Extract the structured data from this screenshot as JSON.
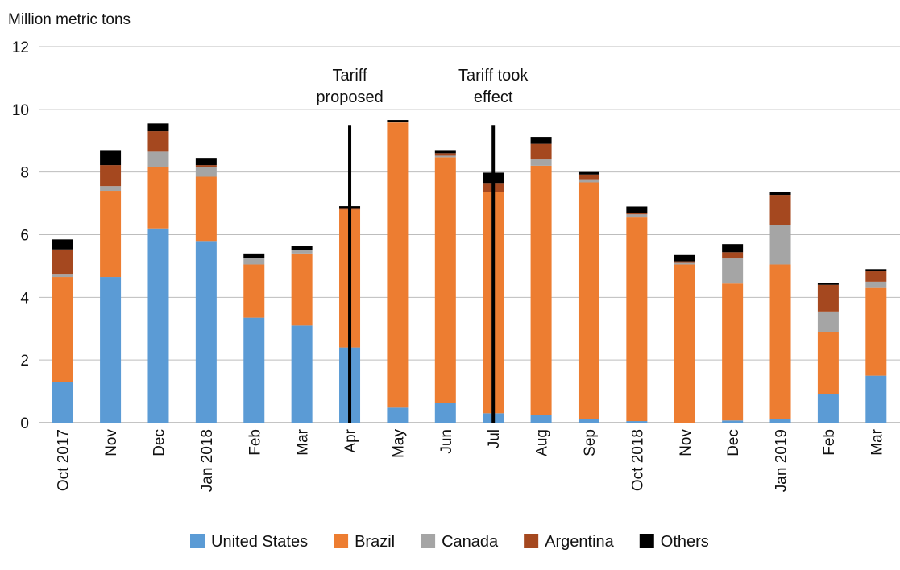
{
  "chart_data": {
    "type": "bar",
    "stacked": true,
    "ylabel": "Million metric tons",
    "ylim": [
      0,
      12
    ],
    "yticks": [
      "0",
      "2",
      "4",
      "6",
      "8",
      "10",
      "12"
    ],
    "grid": true,
    "legend_position": "bottom",
    "categories": [
      "Oct 2017",
      "Nov",
      "Dec",
      "Jan 2018",
      "Feb",
      "Mar",
      "Apr",
      "May",
      "Jun",
      "Jul",
      "Aug",
      "Sep",
      "Oct 2018",
      "Nov",
      "Dec",
      "Jan 2019",
      "Feb",
      "Mar"
    ],
    "series": [
      {
        "name": "United States",
        "color": "#5B9BD5",
        "values": [
          1.3,
          4.65,
          6.2,
          5.8,
          3.35,
          3.1,
          2.4,
          0.48,
          0.62,
          0.3,
          0.25,
          0.12,
          0.05,
          0.0,
          0.07,
          0.12,
          0.9,
          1.5
        ]
      },
      {
        "name": "Brazil",
        "color": "#ED7D31",
        "values": [
          3.35,
          2.75,
          1.95,
          2.05,
          1.7,
          2.3,
          4.4,
          9.1,
          7.85,
          7.05,
          7.95,
          7.55,
          6.5,
          5.05,
          4.37,
          4.93,
          2.0,
          2.8
        ]
      },
      {
        "name": "Canada",
        "color": "#A5A5A5",
        "values": [
          0.1,
          0.15,
          0.5,
          0.3,
          0.2,
          0.1,
          0.0,
          0.03,
          0.05,
          0.0,
          0.2,
          0.1,
          0.1,
          0.05,
          0.8,
          1.25,
          0.65,
          0.2
        ]
      },
      {
        "name": "Argentina",
        "color": "#A5481F",
        "values": [
          0.78,
          0.67,
          0.65,
          0.07,
          0.0,
          0.0,
          0.05,
          0.0,
          0.08,
          0.3,
          0.5,
          0.15,
          0.03,
          0.05,
          0.2,
          0.97,
          0.85,
          0.33
        ]
      },
      {
        "name": "Others",
        "color": "#000000",
        "values": [
          0.32,
          0.48,
          0.25,
          0.23,
          0.15,
          0.13,
          0.06,
          0.05,
          0.1,
          0.33,
          0.22,
          0.08,
          0.22,
          0.2,
          0.26,
          0.1,
          0.07,
          0.07
        ]
      }
    ],
    "annotations": [
      {
        "lines": [
          "Tariff",
          "proposed"
        ],
        "category": "Apr",
        "line_top": 9.5
      },
      {
        "lines": [
          "Tariff took",
          "effect"
        ],
        "category": "Jul",
        "line_top": 9.5
      }
    ]
  }
}
